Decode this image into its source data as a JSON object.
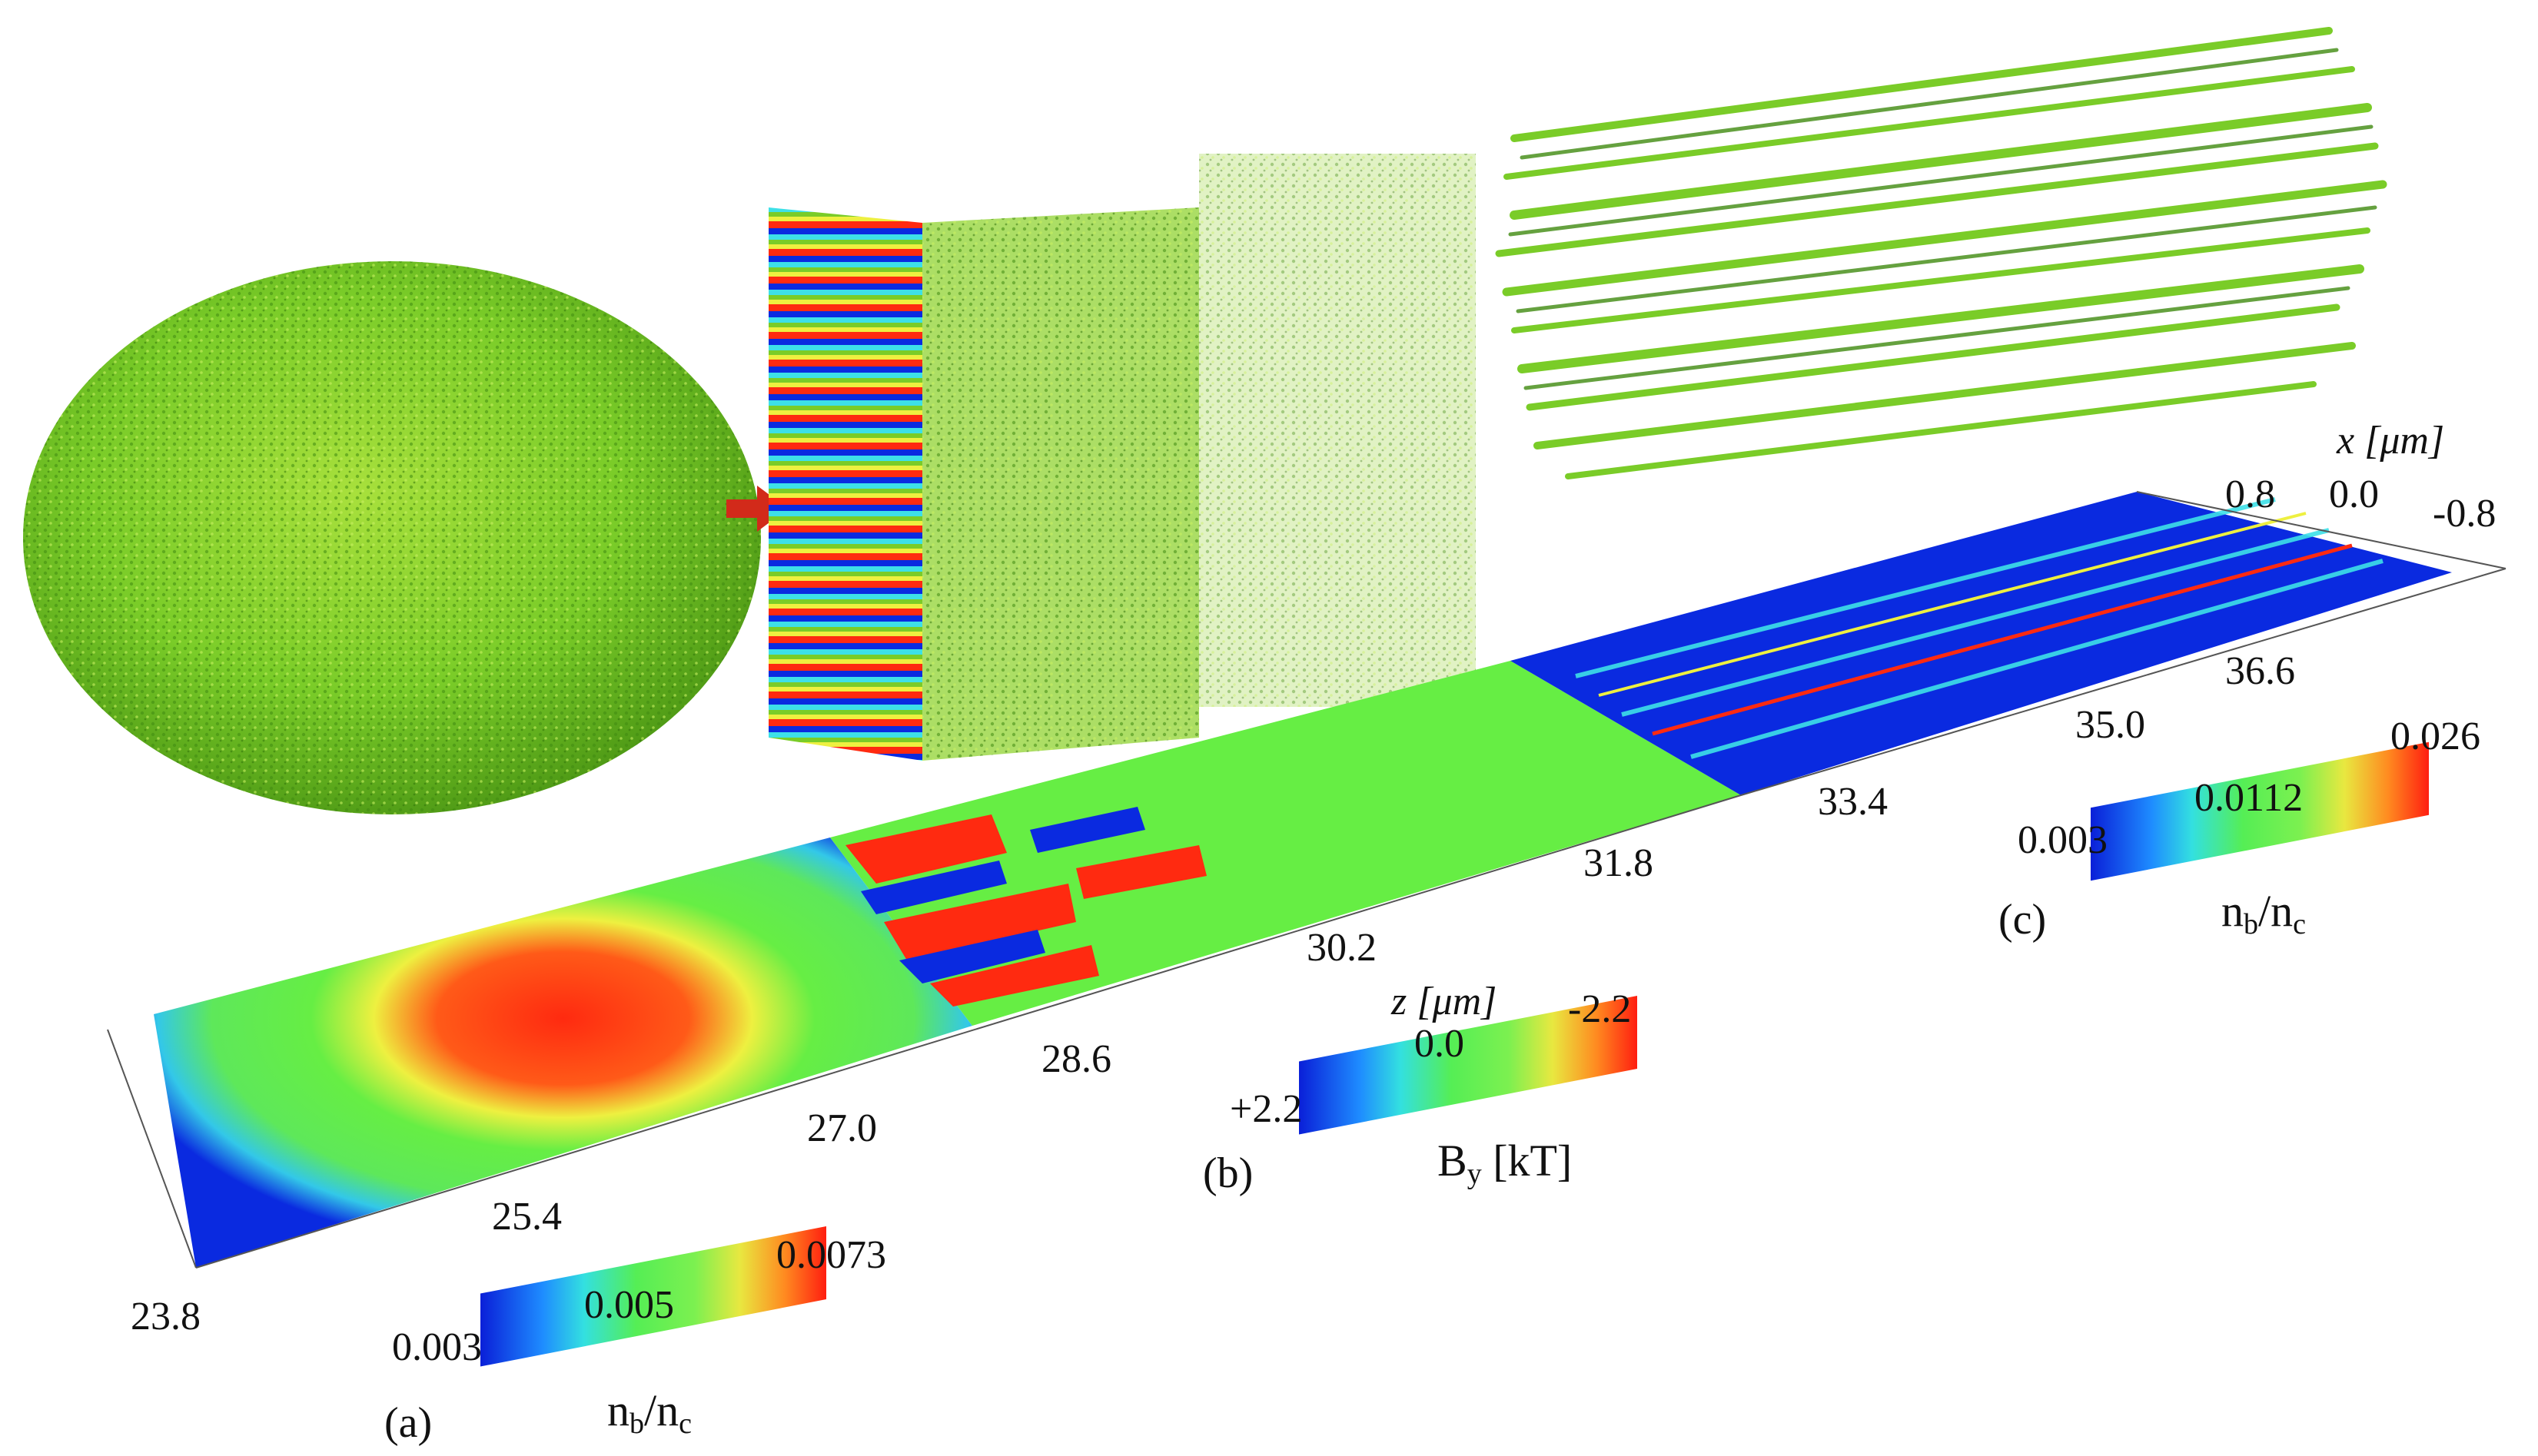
{
  "figure": {
    "z_axis": {
      "title": "z [μm]",
      "ticks": [
        "23.8",
        "25.4",
        "27.0",
        "28.6",
        "30.2",
        "31.8",
        "33.4",
        "35.0",
        "36.6"
      ]
    },
    "x_axis": {
      "title": "x [μm]",
      "ticks": [
        "0.8",
        "0.0",
        "-0.8"
      ]
    },
    "panels": [
      {
        "letter": "(a)",
        "colorbar": {
          "quantity": "n",
          "quantity_sub": "b",
          "over": "/n",
          "over_sub": "c",
          "ticks": [
            "0.003",
            "0.005",
            "0.0073"
          ],
          "colors": [
            "#0a1fd8",
            "#1e8cff",
            "#33e0e0",
            "#55ee55",
            "#7cf050",
            "#e8e840",
            "#ff8a20",
            "#ff1e10"
          ]
        }
      },
      {
        "letter": "(b)",
        "colorbar": {
          "quantity": "B",
          "quantity_sub": "y",
          "unit": " [kT]",
          "ticks": [
            "+2.2",
            "0.0",
            "-2.2"
          ],
          "colors": [
            "#0a1fd8",
            "#1e8cff",
            "#33e0e0",
            "#55ee55",
            "#7cf050",
            "#e8e840",
            "#ff8a20",
            "#ff1e10"
          ]
        }
      },
      {
        "letter": "(c)",
        "colorbar": {
          "quantity": "n",
          "quantity_sub": "b",
          "over": "/n",
          "over_sub": "c",
          "ticks": [
            "0.003",
            "0.0112",
            "0.026"
          ],
          "colors": [
            "#0a1fd8",
            "#1e8cff",
            "#33e0e0",
            "#55ee55",
            "#7cf050",
            "#e8e840",
            "#ff8a20",
            "#ff1e10"
          ]
        }
      }
    ],
    "colors": {
      "blue": "#0a2ae0",
      "green": "#66ee44",
      "red": "#ff2a10",
      "yellow": "#eef040",
      "cyan": "#3de0e8",
      "isosurface_green": "#7acc28",
      "isosurface_dark": "#3f8a10",
      "arrow_red": "#d22a1a"
    }
  }
}
